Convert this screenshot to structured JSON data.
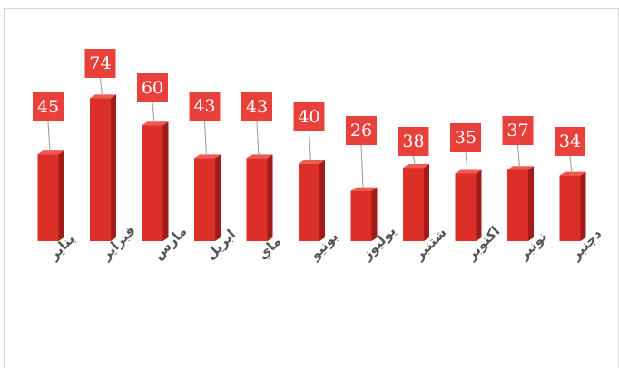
{
  "chart_data": {
    "type": "bar3d",
    "categories": [
      "يناير",
      "فبراير",
      "مارس",
      "ابريل",
      "ماي",
      "يونيو",
      "يوليوز",
      "شتنبر",
      "اكتوبر",
      "نونبر",
      "دجنبر"
    ],
    "values": [
      45,
      74,
      60,
      43,
      43,
      40,
      26,
      38,
      35,
      37,
      34
    ],
    "color": "#dc2f28"
  }
}
